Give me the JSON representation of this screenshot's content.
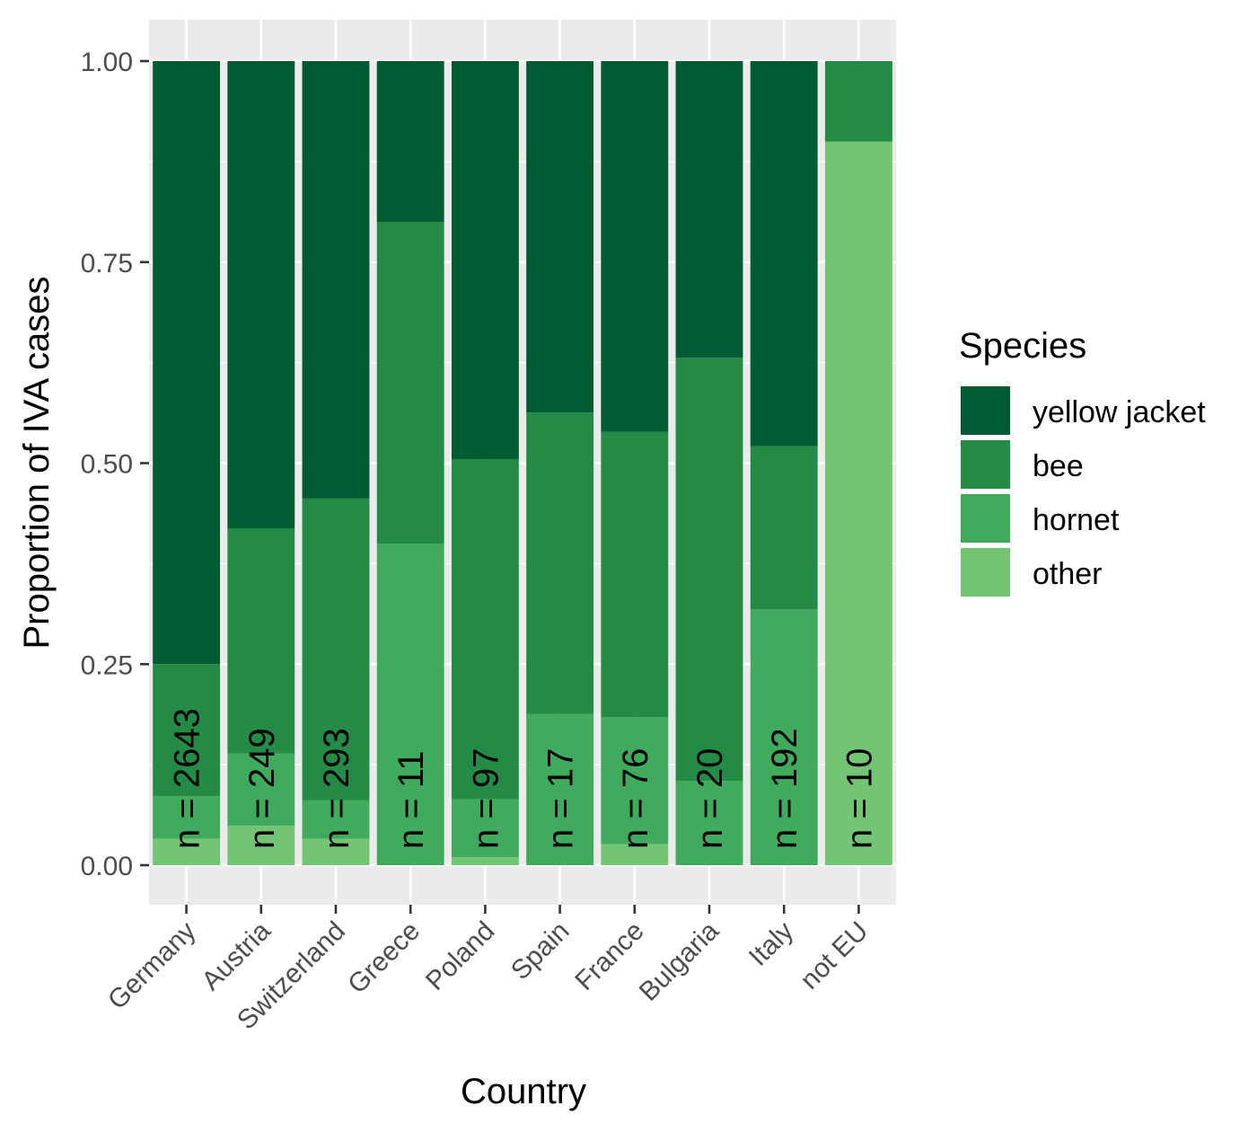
{
  "chart_data": {
    "type": "bar",
    "stacked": true,
    "xlabel": "Country",
    "ylabel": "Proportion of IVA cases",
    "ylim": [
      0,
      1
    ],
    "yticks": [
      "0.00",
      "0.25",
      "0.50",
      "0.75",
      "1.00"
    ],
    "ytick_values": [
      0,
      0.25,
      0.5,
      0.75,
      1.0
    ],
    "categories": [
      "Germany",
      "Austria",
      "Switzerland",
      "Greece",
      "Poland",
      "Spain",
      "France",
      "Bulgaria",
      "Italy",
      "not EU"
    ],
    "n_labels": [
      "n = 2643",
      "n = 249",
      "n = 293",
      "n = 11",
      "n = 97",
      "n = 17",
      "n = 76",
      "n = 20",
      "n = 192",
      "n = 10"
    ],
    "legend": {
      "title": "Species",
      "placement": "right"
    },
    "series": [
      {
        "name": "other",
        "color": "#74c476",
        "values": [
          0.033,
          0.049,
          0.033,
          0.0,
          0.01,
          0.0,
          0.026,
          0.0,
          0.0,
          0.9
        ]
      },
      {
        "name": "hornet",
        "color": "#41ab5d",
        "values": [
          0.053,
          0.09,
          0.048,
          0.4,
          0.072,
          0.188,
          0.158,
          0.105,
          0.318,
          0.0
        ]
      },
      {
        "name": "bee",
        "color": "#238b45",
        "values": [
          0.164,
          0.28,
          0.375,
          0.4,
          0.423,
          0.375,
          0.355,
          0.526,
          0.203,
          0.1
        ]
      },
      {
        "name": "yellow jacket",
        "color": "#005a32",
        "values": [
          0.75,
          0.581,
          0.544,
          0.2,
          0.495,
          0.437,
          0.461,
          0.369,
          0.479,
          0.0
        ]
      }
    ],
    "legend_order": [
      "yellow jacket",
      "bee",
      "hornet",
      "other"
    ],
    "panel_background": "#ebebeb",
    "grid": true
  }
}
